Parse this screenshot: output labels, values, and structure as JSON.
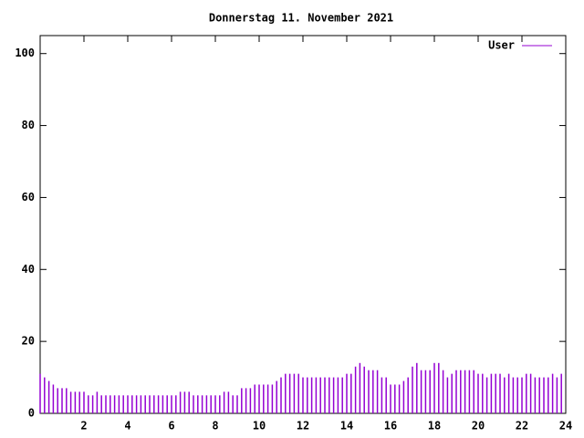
{
  "chart_data": {
    "type": "impulses",
    "title": "Donnerstag 11. November 2021",
    "xlim": [
      0,
      24
    ],
    "xticks": [
      2,
      4,
      6,
      8,
      10,
      12,
      14,
      16,
      18,
      20,
      22,
      24
    ],
    "ylim": [
      0,
      105
    ],
    "yticks": [
      0,
      20,
      40,
      60,
      80,
      100
    ],
    "legend": "top-right",
    "x": [
      0,
      0.2,
      0.4,
      0.6,
      0.8,
      1,
      1.2,
      1.4,
      1.6,
      1.8,
      2,
      2.2,
      2.4,
      2.6,
      2.8,
      3,
      3.2,
      3.4,
      3.6,
      3.8,
      4,
      4.2,
      4.4,
      4.6,
      4.8,
      5,
      5.2,
      5.4,
      5.6,
      5.8,
      6,
      6.2,
      6.4,
      6.6,
      6.8,
      7,
      7.2,
      7.4,
      7.6,
      7.8,
      8,
      8.2,
      8.4,
      8.6,
      8.8,
      9,
      9.2,
      9.4,
      9.6,
      9.8,
      10,
      10.2,
      10.4,
      10.6,
      10.8,
      11,
      11.2,
      11.4,
      11.6,
      11.8,
      12,
      12.2,
      12.4,
      12.6,
      12.8,
      13,
      13.2,
      13.4,
      13.6,
      13.8,
      14,
      14.2,
      14.4,
      14.6,
      14.8,
      15,
      15.2,
      15.4,
      15.6,
      15.8,
      16,
      16.2,
      16.4,
      16.6,
      16.8,
      17,
      17.2,
      17.4,
      17.6,
      17.8,
      18,
      18.2,
      18.4,
      18.6,
      18.8,
      19,
      19.2,
      19.4,
      19.6,
      19.8,
      20,
      20.2,
      20.4,
      20.6,
      20.8,
      21,
      21.2,
      21.4,
      21.6,
      21.8,
      22,
      22.2,
      22.4,
      22.6,
      22.8,
      23,
      23.2,
      23.4,
      23.6,
      23.8
    ],
    "series": [
      {
        "name": "User",
        "color": "#9400d3",
        "values": [
          11,
          10,
          9,
          8,
          7,
          7,
          7,
          6,
          6,
          6,
          6,
          5,
          5,
          6,
          5,
          5,
          5,
          5,
          5,
          5,
          5,
          5,
          5,
          5,
          5,
          5,
          5,
          5,
          5,
          5,
          5,
          5,
          6,
          6,
          6,
          5,
          5,
          5,
          5,
          5,
          5,
          5,
          6,
          6,
          5,
          5,
          7,
          7,
          7,
          8,
          8,
          8,
          8,
          8,
          9,
          10,
          11,
          11,
          11,
          11,
          10,
          10,
          10,
          10,
          10,
          10,
          10,
          10,
          10,
          10,
          11,
          11,
          13,
          14,
          13,
          12,
          12,
          12,
          10,
          10,
          8,
          8,
          8,
          9,
          10,
          13,
          14,
          12,
          12,
          12,
          14,
          14,
          12,
          10,
          11,
          12,
          12,
          12,
          12,
          12,
          11,
          11,
          10,
          11,
          11,
          11,
          10,
          11,
          10,
          10,
          10,
          11,
          11,
          10,
          10,
          10,
          10,
          11,
          10,
          11
        ]
      }
    ]
  }
}
